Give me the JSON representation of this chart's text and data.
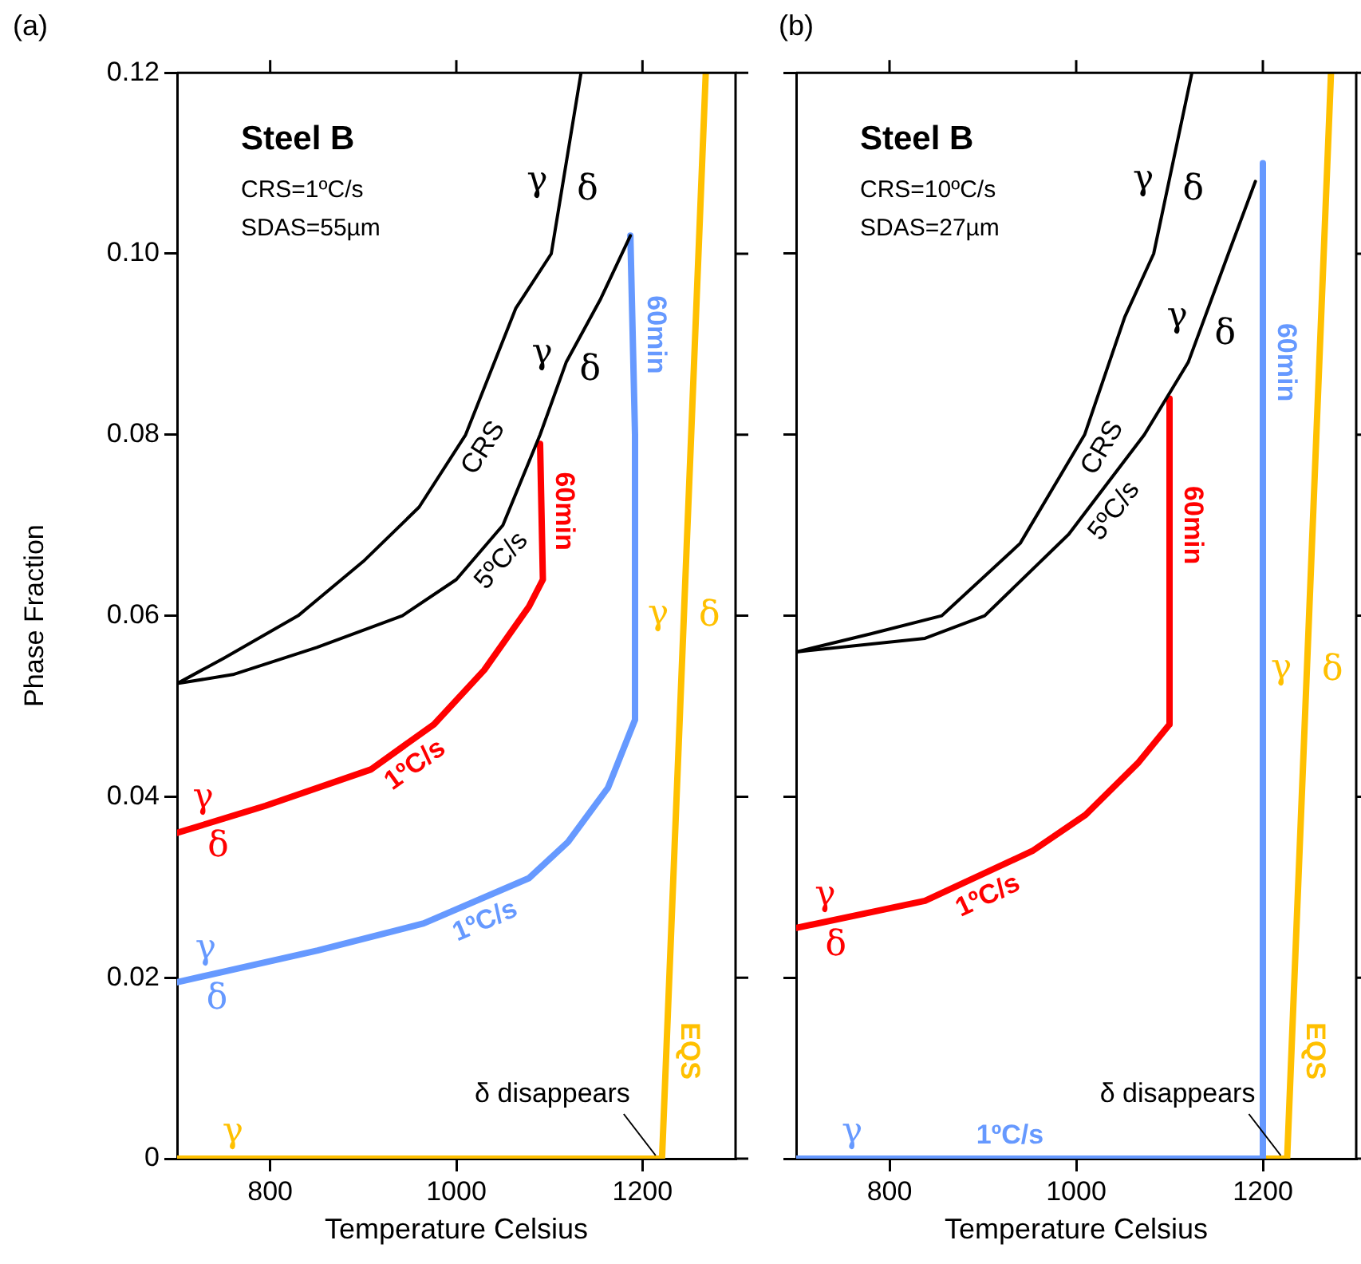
{
  "chart_data": [
    {
      "type": "line",
      "title": "(a)",
      "xlabel": "Temperature Celsius",
      "ylabel": "Phase Fraction",
      "xlim": [
        700,
        1300
      ],
      "xticks": [
        800,
        1000,
        1200
      ],
      "ylim": [
        0,
        0.12
      ],
      "yticks": [
        0,
        0.02,
        0.04,
        0.06,
        0.08,
        {
          "value": 0.1,
          "label": "0.10"
        },
        0.12
      ],
      "marker": "none",
      "series": [
        {
          "name": "CRS",
          "color": "#000000",
          "x": [
            700,
            750,
            830,
            900,
            960,
            1010,
            1064,
            1102,
            1134
          ],
          "values": [
            0.0525,
            0.0553,
            0.06,
            0.066,
            0.072,
            0.08,
            0.094,
            0.1,
            0.12
          ]
        },
        {
          "name": "5ºC/s",
          "color": "#000000",
          "x": [
            700,
            760,
            850,
            942,
            1000,
            1050,
            1090,
            1118,
            1155,
            1187
          ],
          "values": [
            0.0525,
            0.0535,
            0.0565,
            0.06,
            0.064,
            0.07,
            0.08,
            0.088,
            0.095,
            0.102
          ]
        },
        {
          "color": "#ff0000",
          "x": [
            1090,
            1093,
            1078,
            1030,
            976,
            908,
            795,
            700
          ],
          "values": [
            0.079,
            0.064,
            0.061,
            0.054,
            0.048,
            0.043,
            0.039,
            0.036
          ]
        },
        {
          "color": "#6699ff",
          "x": [
            1187,
            1192,
            1192,
            1163,
            1120,
            1078,
            965,
            851,
            700
          ],
          "values": [
            0.102,
            0.08,
            0.0485,
            0.041,
            0.035,
            0.031,
            0.026,
            0.023,
            0.0195
          ]
        },
        {
          "color": "#ffc000",
          "x": [
            1268,
            1221,
            700
          ],
          "values": [
            0.12,
            0,
            0
          ]
        }
      ],
      "annotations": [
        "Steel B",
        "CRS=1ºC/s",
        "SDAS=55µm",
        {
          "text": "γ",
          "x": 1114,
          "y": 0.1075
        },
        {
          "text": "δ",
          "x": 1114,
          "y": 0.1075
        },
        {
          "text": "γ",
          "x": 1118,
          "y": 0.088
        },
        {
          "text": "δ",
          "x": 1118,
          "y": 0.088
        },
        {
          "text": "60min",
          "x": 1091.5,
          "y": 0.0715
        },
        {
          "text": "1ºC/s",
          "x": 942,
          "y": 0.0455
        },
        {
          "text": "γ",
          "x": 700,
          "y": 0.036
        },
        {
          "text": "δ",
          "x": 700,
          "y": 0.036
        },
        {
          "text": "60min",
          "x": 1189.5,
          "y": 0.091
        },
        {
          "text": "1ºC/s",
          "x": 1021.5,
          "y": 0.0285
        },
        {
          "text": "γ",
          "x": 700,
          "y": 0.0195
        },
        {
          "text": "δ",
          "x": 700,
          "y": 0.0195
        },
        {
          "text": "γ",
          "x": 1244.5,
          "y": 0.06
        },
        {
          "text": "δ",
          "x": 1244.5,
          "y": 0.06
        },
        {
          "text": "γ",
          "x": 760,
          "y": 0
        },
        {
          "text": "δ disappears",
          "x": 1221,
          "y": 0
        },
        {
          "text": "EQS",
          "x": 1225.7,
          "y": 0.012
        }
      ]
    },
    {
      "type": "line",
      "title": "(b)",
      "xlabel": "Temperature Celsius",
      "xlim": [
        700,
        1300
      ],
      "xticks": [
        800,
        1000,
        1200
      ],
      "ylim": [
        0,
        0.12
      ],
      "yticks": [
        0,
        0.02,
        0.04,
        0.06,
        0.08,
        0.1,
        0.12
      ],
      "tick_labels": "x",
      "marker": "none",
      "series": [
        {
          "name": "CRS",
          "color": "#000000",
          "x": [
            700,
            780,
            856,
            940,
            1009,
            1052,
            1083,
            1124
          ],
          "values": [
            0.056,
            0.058,
            0.06,
            0.068,
            0.08,
            0.093,
            0.1,
            0.12
          ]
        },
        {
          "name": "5ºC/s",
          "color": "#000000",
          "x": [
            700,
            838,
            902,
            992,
            1073,
            1120,
            1163,
            1192
          ],
          "values": [
            0.056,
            0.0575,
            0.06,
            0.069,
            0.08,
            0.088,
            0.1,
            0.108
          ]
        },
        {
          "color": "#ff0000",
          "x": [
            1100,
            1100,
            1066,
            1010,
            953,
            838,
            700
          ],
          "values": [
            0.084,
            0.048,
            0.0437,
            0.038,
            0.034,
            0.0285,
            0.0255
          ]
        },
        {
          "color": "#6699ff",
          "x": [
            1200,
            1200,
            700
          ],
          "values": [
            0.11,
            0,
            0
          ]
        },
        {
          "color": "#ffc000",
          "x": [
            1273,
            1226,
            1200
          ],
          "values": [
            0.12,
            0,
            0
          ]
        }
      ],
      "annotations": [
        "Steel B",
        "CRS=10ºC/s",
        "SDAS=27µm",
        {
          "text": "γ",
          "x": 1098.6,
          "y": 0.1076
        },
        {
          "text": "δ",
          "x": 1098.6,
          "y": 0.1076
        },
        {
          "text": "γ",
          "x": 1134,
          "y": 0.092
        },
        {
          "text": "δ",
          "x": 1134,
          "y": 0.092
        },
        {
          "text": "60min",
          "x": 1100,
          "y": 0.07
        },
        {
          "text": "1ºC/s",
          "x": 895.5,
          "y": 0.03125
        },
        {
          "text": "γ",
          "x": 700,
          "y": 0.0255
        },
        {
          "text": "δ",
          "x": 700,
          "y": 0.0255
        },
        {
          "text": "60min",
          "x": 1200,
          "y": 0.088
        },
        {
          "text": "1ºC/s",
          "x": 929,
          "y": 0
        },
        {
          "text": "γ",
          "x": 1247.15,
          "y": 0.054
        },
        {
          "text": "δ",
          "x": 1247.15,
          "y": 0.054
        },
        {
          "text": "γ",
          "x": 760,
          "y": 0
        },
        {
          "text": "δ disappears",
          "x": 1226,
          "y": 0
        },
        {
          "text": "EQS",
          "x": 1230.7,
          "y": 0.012
        }
      ]
    }
  ]
}
